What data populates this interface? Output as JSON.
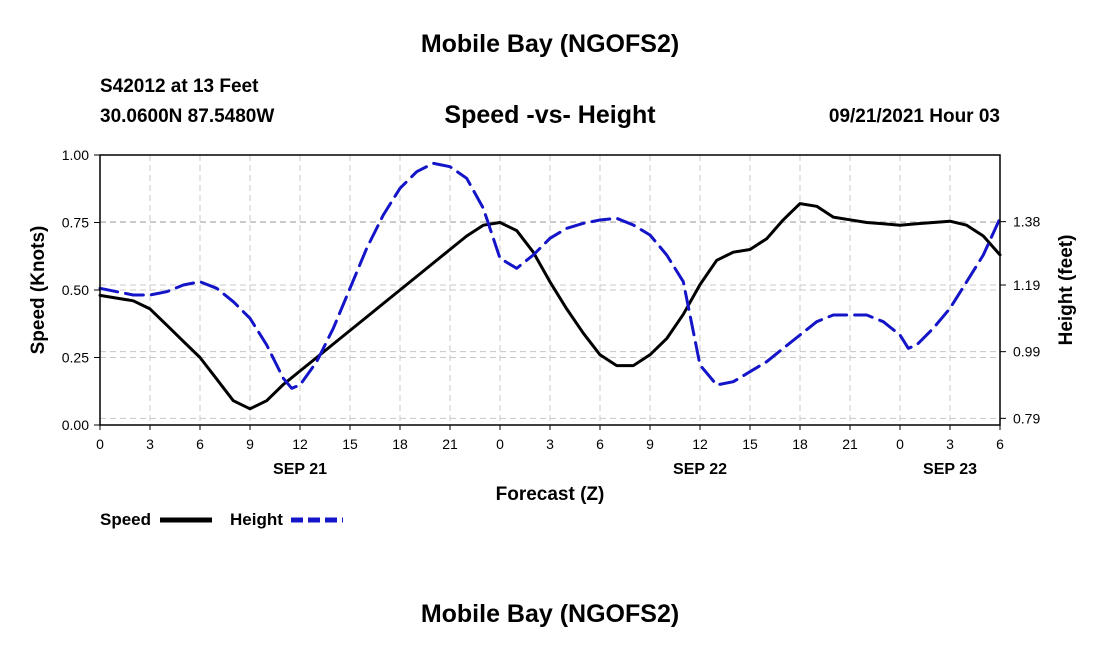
{
  "header": {
    "title_top": "Mobile Bay (NGOFS2)",
    "title_bottom": "Mobile Bay (NGOFS2)",
    "station": "S42012 at 13 Feet",
    "coords": "30.0600N  87.5480W",
    "plot_title": "Speed -vs- Height",
    "date_hour": "09/21/2021 Hour 03"
  },
  "chart_data": {
    "type": "line",
    "xlabel": "Forecast (Z)",
    "ylabel": "Speed (Knots)",
    "y2label": "Height (feet)",
    "x_tick_labels": [
      "0",
      "3",
      "6",
      "9",
      "12",
      "15",
      "18",
      "21",
      "0",
      "3",
      "6",
      "9",
      "12",
      "15",
      "18",
      "21",
      "0",
      "3",
      "6"
    ],
    "date_labels": [
      {
        "hour": 12,
        "label": "SEP 21"
      },
      {
        "hour": 36,
        "label": "SEP 22"
      },
      {
        "hour": 51,
        "label": "SEP 23"
      }
    ],
    "xlim": [
      0,
      54
    ],
    "ylim": [
      0,
      1
    ],
    "y_ticks": [
      "0.00",
      "0.25",
      "0.50",
      "0.75",
      "1.00"
    ],
    "y2lim": [
      0.77,
      1.58
    ],
    "y2_ticks": [
      0.79,
      0.99,
      1.19,
      1.38
    ],
    "y2_tick_labels": [
      "0.79",
      "0.99",
      "1.19",
      "1.38"
    ],
    "grid": true,
    "series": [
      {
        "name": "Speed",
        "axis": "left",
        "color": "#000000",
        "style": "solid",
        "points": [
          [
            0,
            0.48
          ],
          [
            1,
            0.47
          ],
          [
            2,
            0.46
          ],
          [
            3,
            0.43
          ],
          [
            4,
            0.37
          ],
          [
            5,
            0.31
          ],
          [
            6,
            0.25
          ],
          [
            7,
            0.17
          ],
          [
            8,
            0.09
          ],
          [
            9,
            0.06
          ],
          [
            10,
            0.09
          ],
          [
            11,
            0.15
          ],
          [
            12,
            0.2
          ],
          [
            13,
            0.25
          ],
          [
            14,
            0.3
          ],
          [
            15,
            0.35
          ],
          [
            16,
            0.4
          ],
          [
            17,
            0.45
          ],
          [
            18,
            0.5
          ],
          [
            19,
            0.55
          ],
          [
            20,
            0.6
          ],
          [
            21,
            0.65
          ],
          [
            22,
            0.7
          ],
          [
            23,
            0.74
          ],
          [
            24,
            0.75
          ],
          [
            25,
            0.72
          ],
          [
            26,
            0.64
          ],
          [
            27,
            0.53
          ],
          [
            28,
            0.43
          ],
          [
            29,
            0.34
          ],
          [
            30,
            0.26
          ],
          [
            31,
            0.22
          ],
          [
            32,
            0.22
          ],
          [
            33,
            0.26
          ],
          [
            34,
            0.32
          ],
          [
            35,
            0.41
          ],
          [
            36,
            0.52
          ],
          [
            37,
            0.61
          ],
          [
            38,
            0.64
          ],
          [
            39,
            0.65
          ],
          [
            40,
            0.69
          ],
          [
            41,
            0.76
          ],
          [
            42,
            0.82
          ],
          [
            43,
            0.81
          ],
          [
            44,
            0.77
          ],
          [
            45,
            0.76
          ],
          [
            46,
            0.75
          ],
          [
            47,
            0.745
          ],
          [
            48,
            0.74
          ],
          [
            49,
            0.745
          ],
          [
            50,
            0.75
          ],
          [
            51,
            0.755
          ],
          [
            52,
            0.74
          ],
          [
            53,
            0.7
          ],
          [
            54,
            0.63
          ]
        ]
      },
      {
        "name": "Height",
        "axis": "right",
        "color": "#1414c8",
        "style": "dashed",
        "points": [
          [
            0,
            1.18
          ],
          [
            1,
            1.17
          ],
          [
            2,
            1.16
          ],
          [
            3,
            1.16
          ],
          [
            4,
            1.17
          ],
          [
            5,
            1.19
          ],
          [
            6,
            1.2
          ],
          [
            7,
            1.18
          ],
          [
            8,
            1.14
          ],
          [
            9,
            1.09
          ],
          [
            10,
            1.01
          ],
          [
            11,
            0.91
          ],
          [
            11.5,
            0.88
          ],
          [
            12,
            0.89
          ],
          [
            13,
            0.96
          ],
          [
            14,
            1.06
          ],
          [
            15,
            1.18
          ],
          [
            16,
            1.3
          ],
          [
            17,
            1.4
          ],
          [
            18,
            1.48
          ],
          [
            19,
            1.53
          ],
          [
            20,
            1.555
          ],
          [
            21,
            1.545
          ],
          [
            22,
            1.51
          ],
          [
            23,
            1.42
          ],
          [
            24,
            1.27
          ],
          [
            25,
            1.24
          ],
          [
            26,
            1.28
          ],
          [
            27,
            1.33
          ],
          [
            28,
            1.36
          ],
          [
            29,
            1.375
          ],
          [
            30,
            1.385
          ],
          [
            31,
            1.39
          ],
          [
            32,
            1.37
          ],
          [
            33,
            1.34
          ],
          [
            34,
            1.28
          ],
          [
            35,
            1.2
          ],
          [
            36,
            0.95
          ],
          [
            37,
            0.89
          ],
          [
            38,
            0.9
          ],
          [
            39,
            0.93
          ],
          [
            40,
            0.96
          ],
          [
            41,
            1.0
          ],
          [
            42,
            1.04
          ],
          [
            43,
            1.08
          ],
          [
            44,
            1.1
          ],
          [
            45,
            1.1
          ],
          [
            46,
            1.1
          ],
          [
            47,
            1.08
          ],
          [
            48,
            1.04
          ],
          [
            48.5,
            1.0
          ],
          [
            49,
            1.01
          ],
          [
            50,
            1.06
          ],
          [
            51,
            1.12
          ],
          [
            52,
            1.2
          ],
          [
            53,
            1.28
          ],
          [
            54,
            1.39
          ]
        ]
      }
    ]
  },
  "legend": {
    "speed_label": "Speed",
    "height_label": "Height"
  }
}
